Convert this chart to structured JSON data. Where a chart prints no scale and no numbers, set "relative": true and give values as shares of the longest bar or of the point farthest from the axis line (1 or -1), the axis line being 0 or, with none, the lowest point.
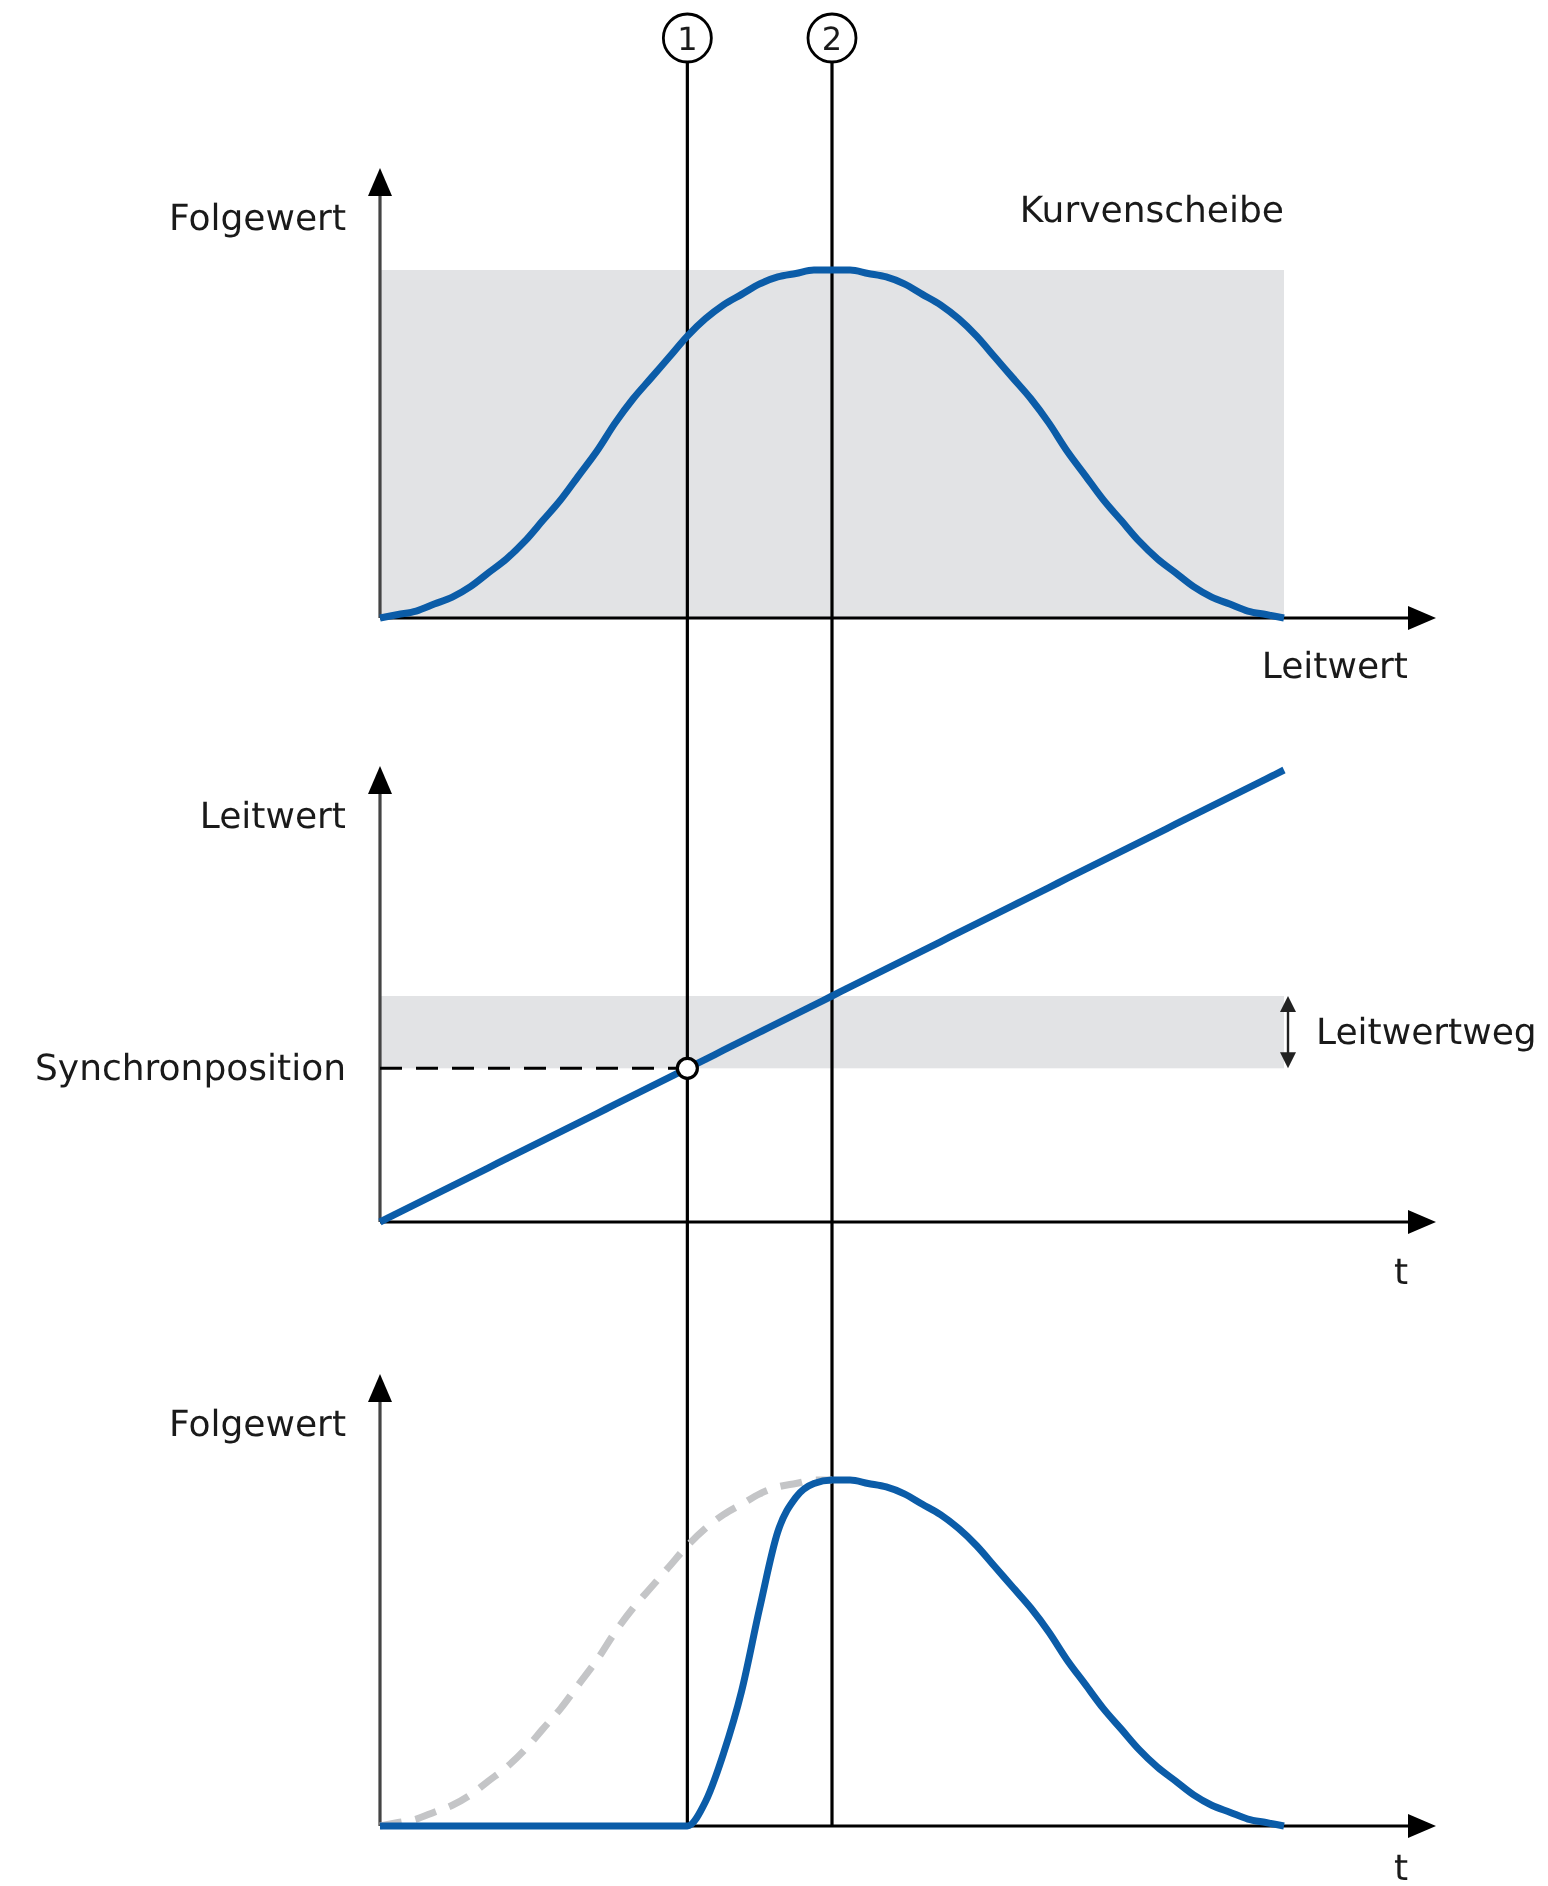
{
  "chart_data": [
    {
      "type": "line",
      "title": "Kurvenscheibe",
      "ylabel": "Folgewert",
      "xlabel": "Leitwert",
      "relative": true,
      "annotations": [
        "1",
        "2"
      ],
      "categories": [
        null,
        null,
        null,
        null,
        null,
        null,
        null,
        null,
        null,
        null,
        null,
        null,
        null,
        null,
        null,
        null,
        null,
        null,
        null,
        null,
        null,
        null,
        null,
        null,
        null,
        null,
        null,
        null,
        null,
        null,
        null,
        null,
        null,
        null,
        null,
        null,
        null,
        null,
        null,
        null,
        null,
        null,
        null,
        null,
        null,
        null,
        null,
        null,
        null,
        null,
        null
      ],
      "series": [
        {
          "color": "#0b5ca8",
          "values": [
            0,
            0.01,
            0.02,
            0.04,
            0.06,
            0.09,
            0.13,
            0.17,
            0.22,
            0.28,
            0.34,
            0.41,
            0.48,
            0.56,
            0.63,
            0.69,
            0.75,
            0.81,
            0.86,
            0.9,
            0.93,
            0.96,
            0.98,
            0.99,
            1,
            1,
            1,
            0.99,
            0.98,
            0.96,
            0.93,
            0.9,
            0.86,
            0.81,
            0.75,
            0.69,
            0.63,
            0.56,
            0.48,
            0.41,
            0.34,
            0.28,
            0.22,
            0.17,
            0.13,
            0.09,
            0.06,
            0.04,
            0.02,
            0.01,
            0
          ]
        }
      ]
    },
    {
      "type": "line",
      "ylabel": "Leitwert",
      "xlabel": "t",
      "relative": true,
      "categories": [
        null,
        null,
        null,
        null,
        null,
        null,
        null,
        null,
        null,
        null,
        null,
        null,
        null,
        null,
        null,
        null,
        null,
        null,
        null,
        null,
        null,
        null,
        null,
        null,
        null,
        null,
        null,
        null,
        null,
        null,
        null,
        null,
        null,
        null,
        null,
        null,
        null,
        null,
        null,
        null,
        null,
        null,
        null,
        null,
        null,
        null,
        null,
        null,
        null,
        null,
        null
      ],
      "series": [
        {
          "color": "#0b5ca8",
          "values": [
            0,
            0.02,
            0.04,
            0.06,
            0.08,
            0.1,
            0.12,
            0.14,
            0.16,
            0.18,
            0.2,
            0.22,
            0.24,
            0.26,
            0.28,
            0.3,
            0.32,
            0.34,
            0.36,
            0.38,
            0.4,
            0.42,
            0.44,
            0.46,
            0.48,
            0.5,
            0.52,
            0.54,
            0.56,
            0.58,
            0.6,
            0.62,
            0.64,
            0.66,
            0.68,
            0.7,
            0.72,
            0.74,
            0.76,
            0.78,
            0.8,
            0.82,
            0.84,
            0.86,
            0.88,
            0.9,
            0.92,
            0.94,
            0.96,
            0.98,
            1
          ]
        },
        {
          "name": "Synchronposition",
          "color": "#000000",
          "line_style": "dashed",
          "values": [
            0.34,
            0.34,
            0.34,
            0.34,
            0.34,
            0.34,
            0.34,
            0.34,
            0.34,
            0.34,
            0.34,
            0.34,
            0.34,
            0.34,
            0.34,
            0.34,
            0.34,
            0.34,
            null,
            null,
            null,
            null,
            null,
            null,
            null,
            null,
            null,
            null,
            null,
            null,
            null,
            null,
            null,
            null,
            null,
            null,
            null,
            null,
            null,
            null,
            null,
            null,
            null,
            null,
            null,
            null,
            null,
            null,
            null,
            null,
            null
          ]
        },
        {
          "type": "scatter",
          "color": "#000000",
          "marker": "circle",
          "values": [
            null,
            null,
            null,
            null,
            null,
            null,
            null,
            null,
            null,
            null,
            null,
            null,
            null,
            null,
            null,
            null,
            null,
            0.34,
            null,
            null,
            null,
            null,
            null,
            null,
            null,
            null,
            null,
            null,
            null,
            null,
            null,
            null,
            null,
            null,
            null,
            null,
            null,
            null,
            null,
            null,
            null,
            null,
            null,
            null,
            null,
            null,
            null,
            null,
            null,
            null,
            null
          ]
        }
      ],
      "bands": [
        {
          "axis": "y",
          "from": 0.34,
          "to": 0.5,
          "label": "Leitwertweg",
          "color": "#e2e3e5"
        }
      ]
    },
    {
      "type": "line",
      "ylabel": "Folgewert",
      "xlabel": "t",
      "relative": true,
      "categories": [
        null,
        null,
        null,
        null,
        null,
        null,
        null,
        null,
        null,
        null,
        null,
        null,
        null,
        null,
        null,
        null,
        null,
        null,
        null,
        null,
        null,
        null,
        null,
        null,
        null,
        null,
        null,
        null,
        null,
        null,
        null,
        null,
        null,
        null,
        null,
        null,
        null,
        null,
        null,
        null,
        null,
        null,
        null,
        null,
        null,
        null,
        null,
        null,
        null,
        null,
        null
      ],
      "series": [
        {
          "color": "#c4c5c7",
          "line_style": "dashed",
          "values": [
            0,
            0.01,
            0.02,
            0.04,
            0.06,
            0.09,
            0.13,
            0.17,
            0.22,
            0.28,
            0.34,
            0.41,
            0.48,
            0.56,
            0.63,
            0.69,
            0.75,
            0.81,
            0.86,
            0.9,
            0.93,
            0.96,
            0.98,
            0.99,
            1,
            1,
            null,
            null,
            null,
            null,
            null,
            null,
            null,
            null,
            null,
            null,
            null,
            null,
            null,
            null,
            null,
            null,
            null,
            null,
            null,
            null,
            null,
            null,
            null,
            null,
            null
          ]
        },
        {
          "color": "#0b5ca8",
          "values": [
            0,
            0,
            0,
            0,
            0,
            0,
            0,
            0,
            0,
            0,
            0,
            0,
            0,
            0,
            0,
            0,
            0,
            0,
            0.07,
            0.21,
            0.39,
            0.63,
            0.85,
            0.95,
            0.99,
            1,
            1,
            0.99,
            0.98,
            0.96,
            0.93,
            0.9,
            0.86,
            0.81,
            0.75,
            0.69,
            0.63,
            0.56,
            0.48,
            0.41,
            0.34,
            0.28,
            0.22,
            0.17,
            0.13,
            0.09,
            0.06,
            0.04,
            0.02,
            0.01,
            0
          ]
        }
      ]
    }
  ]
}
